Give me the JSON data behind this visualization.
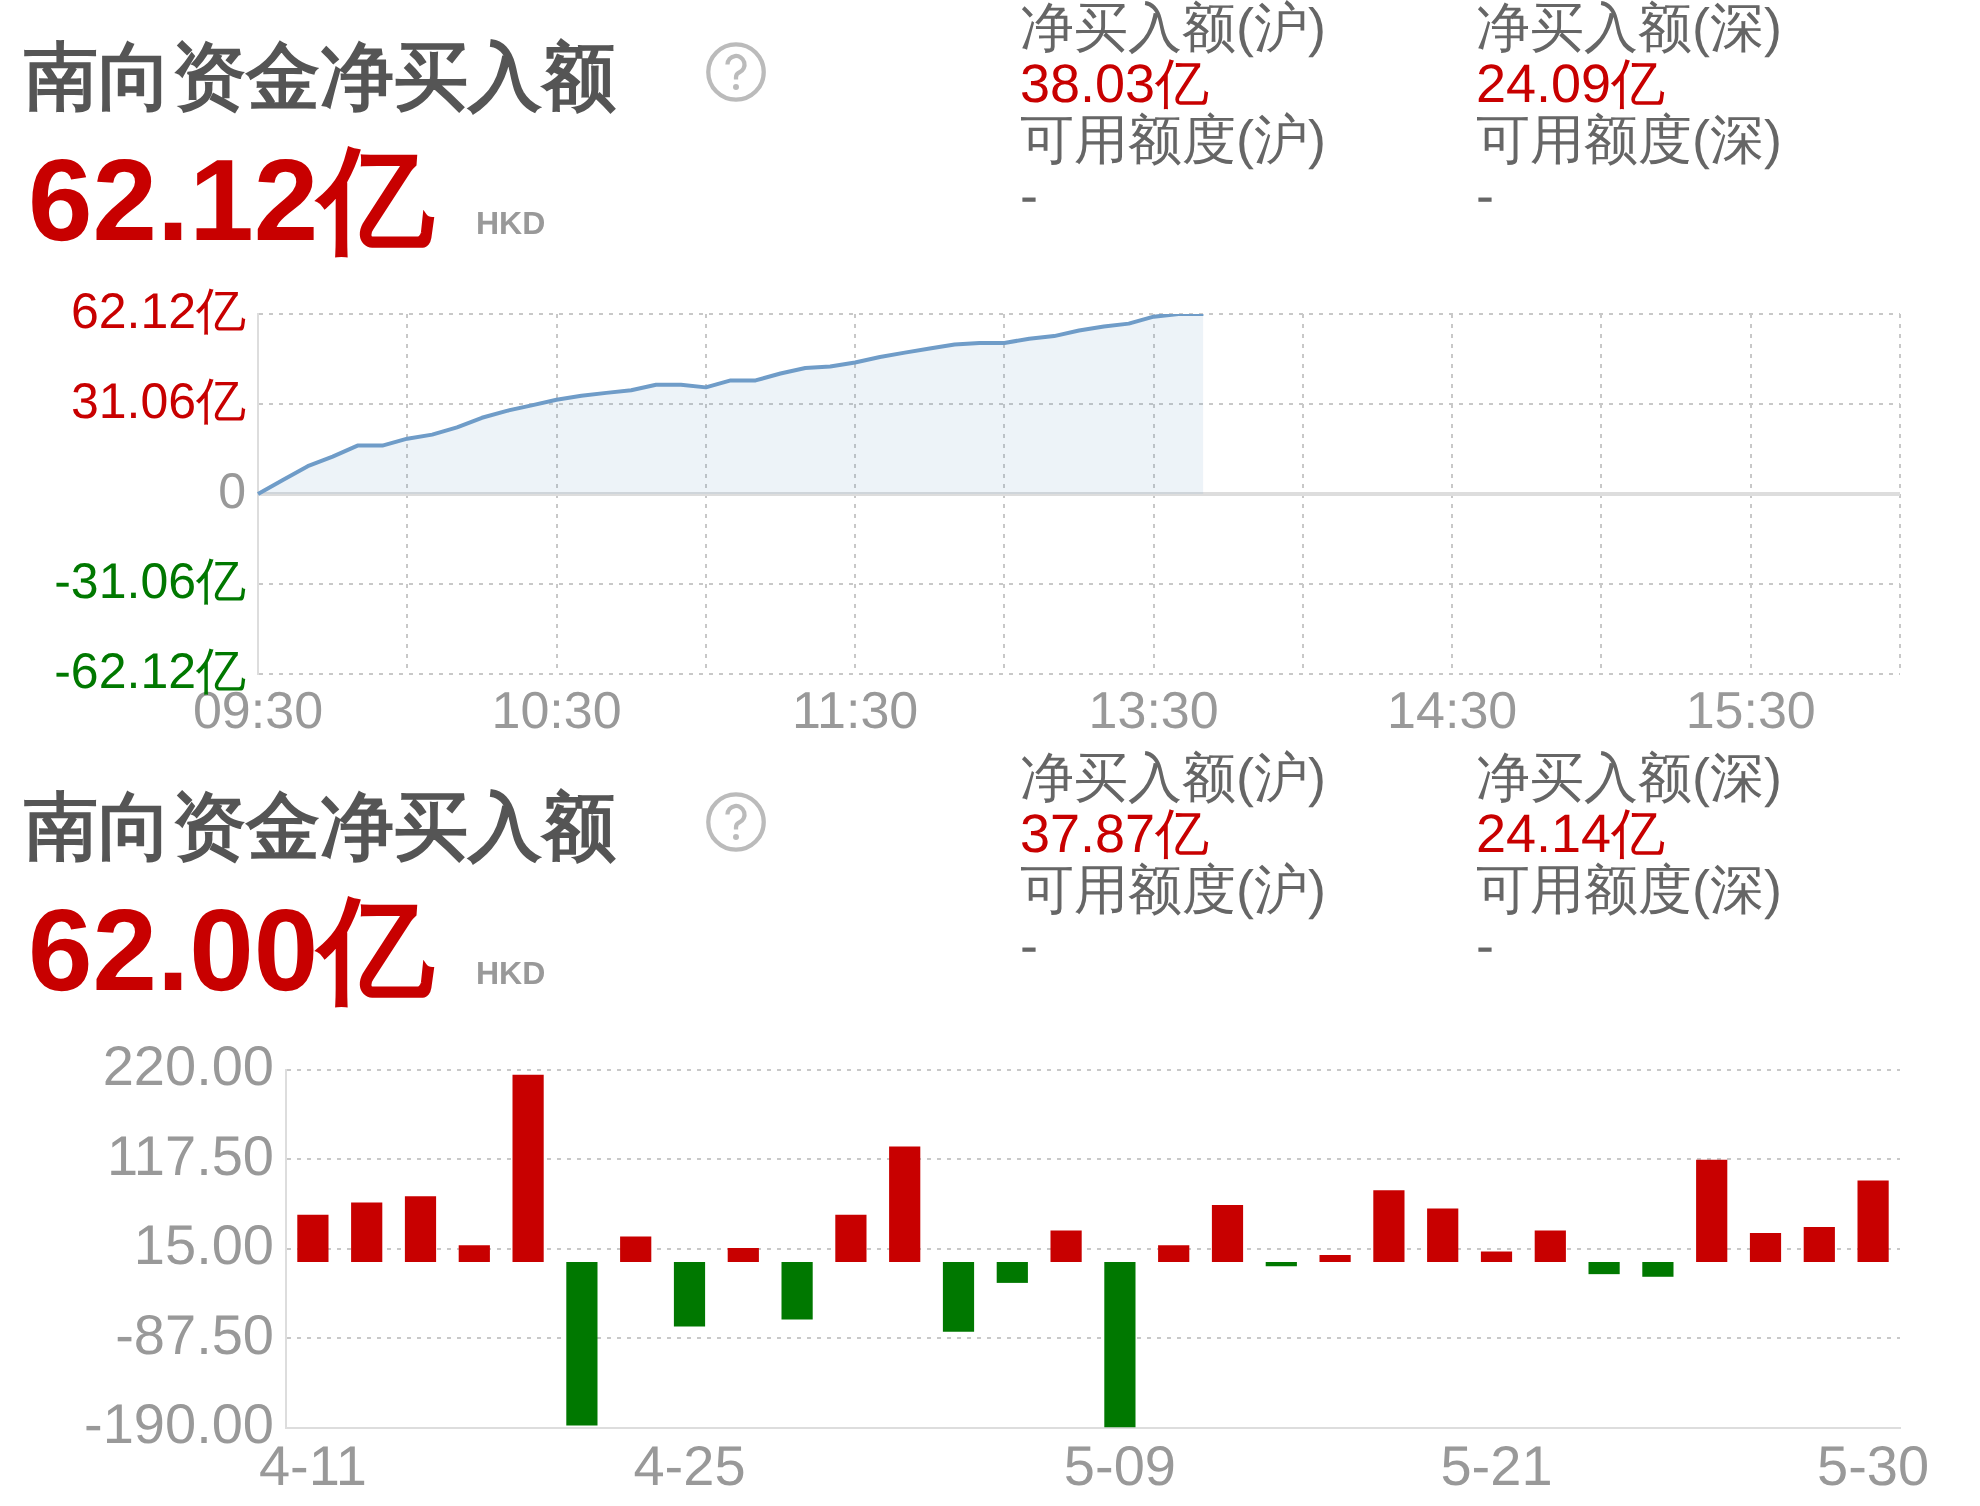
{
  "chart_data": [
    {
      "type": "area",
      "title": "南向资金净买入额",
      "subtitle": "62.12亿",
      "annotations": [
        "HKD",
        "净买入额(沪)",
        "38.03亿",
        "可用额度(沪)",
        "-",
        "净买入额(深)",
        "24.09亿",
        "可用额度(深)",
        "-"
      ],
      "categories": [
        "09:30",
        null,
        null,
        null,
        null,
        null,
        null,
        null,
        null,
        null,
        null,
        null,
        "10:30",
        null,
        null,
        null,
        null,
        null,
        null,
        null,
        null,
        null,
        null,
        null,
        "11:30",
        null,
        null,
        null,
        null,
        null,
        null,
        null,
        null,
        null,
        null,
        null,
        "13:30",
        null,
        null,
        null,
        null,
        null,
        null,
        null,
        null,
        null,
        null,
        null,
        "14:30",
        null,
        null,
        null,
        null,
        null,
        null,
        null,
        null,
        null,
        null,
        null,
        "15:30",
        null,
        null,
        null,
        null,
        null,
        null
      ],
      "series": [
        {
          "color": "#6f9cc8",
          "values": [
            0,
            4.8,
            9.6,
            12.9,
            16.7,
            16.7,
            19.1,
            20.5,
            23,
            26.3,
            28.7,
            30.6,
            32.5,
            33.9,
            34.9,
            35.8,
            37.7,
            37.7,
            36.8,
            39.2,
            39.2,
            41.6,
            43.5,
            44,
            45.4,
            47.3,
            48.8,
            50.2,
            51.6,
            52.1,
            52.1,
            53.6,
            54.5,
            56.4,
            57.8,
            58.8,
            61.2,
            62.1,
            62.1,
            null,
            null,
            null,
            null,
            null,
            null,
            null,
            null,
            null,
            null,
            null,
            null,
            null,
            null,
            null,
            null,
            null,
            null,
            null,
            null,
            null,
            null,
            null,
            null,
            null,
            null,
            null,
            null
          ]
        }
      ],
      "ylim": [
        -62.12,
        62.12
      ],
      "yticks": [
        {
          "value": -62.12,
          "label": "-62.12亿"
        },
        {
          "value": -31.06,
          "label": "-31.06亿"
        },
        0,
        {
          "value": 31.06,
          "label": "31.06亿"
        },
        {
          "value": 62.12,
          "label": "62.12亿"
        }
      ],
      "ref_lines": [
        {
          "axis": "y",
          "value": 0,
          "color": "#dddddd"
        }
      ],
      "grid": true
    },
    {
      "type": "bar",
      "title": "南向资金净买入额",
      "subtitle": "62.00亿",
      "annotations": [
        "HKD",
        "净买入额(沪)",
        "37.87亿",
        "可用额度(沪)",
        "-",
        "净买入额(深)",
        "24.14亿",
        "可用额度(深)",
        "-"
      ],
      "categories": [
        "4-11",
        null,
        null,
        null,
        null,
        null,
        null,
        "4-25",
        null,
        null,
        null,
        null,
        null,
        null,
        null,
        "5-09",
        null,
        null,
        null,
        null,
        null,
        null,
        "5-21",
        null,
        null,
        null,
        null,
        null,
        null,
        "5-30"
      ],
      "values": [
        54,
        68,
        75,
        19,
        214,
        -187,
        29,
        -74,
        16,
        -66,
        54,
        132,
        -80,
        -24,
        36,
        -189,
        19,
        65,
        -5,
        8,
        82,
        61,
        12,
        36,
        -14,
        -17,
        117,
        33,
        40,
        93
      ],
      "colors": [
        "#c80000",
        "#c80000",
        "#c80000",
        "#c80000",
        "#c80000",
        "#007800",
        "#c80000",
        "#007800",
        "#c80000",
        "#007800",
        "#c80000",
        "#c80000",
        "#007800",
        "#007800",
        "#c80000",
        "#007800",
        "#c80000",
        "#c80000",
        "#007800",
        "#c80000",
        "#c80000",
        "#c80000",
        "#c80000",
        "#c80000",
        "#007800",
        "#007800",
        "#c80000",
        "#c80000",
        "#c80000",
        "#c80000"
      ],
      "ylim": [
        -190,
        220
      ],
      "yticks": [
        {
          "value": -190,
          "label": "-190.00"
        },
        {
          "value": -87.5,
          "label": "-87.50"
        },
        {
          "value": 15,
          "label": "15.00"
        },
        {
          "value": 117.5,
          "label": "117.50"
        },
        {
          "value": 220,
          "label": "220.00"
        }
      ],
      "grid": "y"
    }
  ]
}
